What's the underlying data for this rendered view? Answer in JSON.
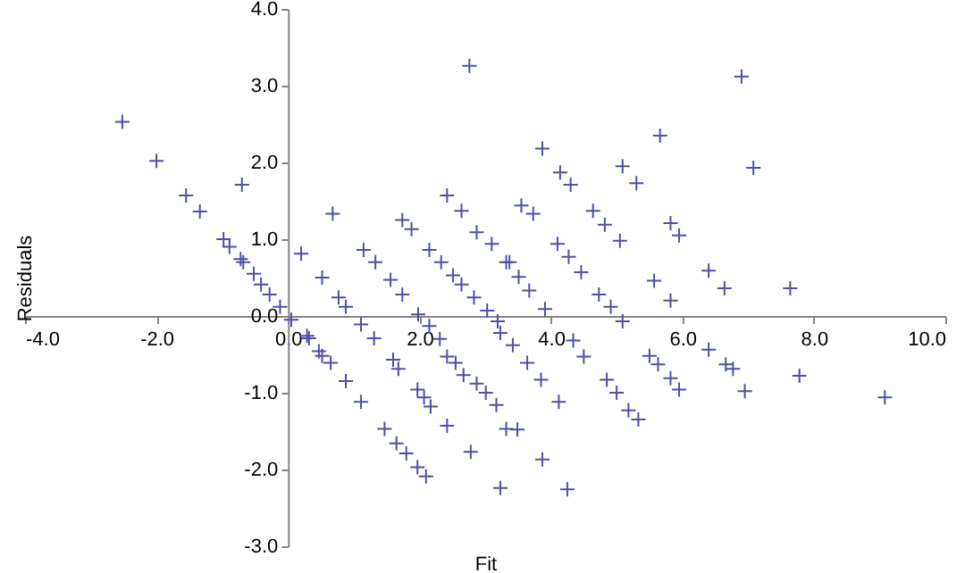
{
  "chart_data": {
    "type": "scatter",
    "xlabel": "Fit",
    "ylabel": "Residuals",
    "x": [
      -2.52,
      -2.0,
      -1.55,
      -1.34,
      -0.7,
      -0.98,
      -0.89,
      -0.72,
      -0.68,
      -0.52,
      -0.41,
      -0.28,
      -0.12,
      0.05,
      0.29,
      0.2,
      0.47,
      2.76,
      0.68,
      0.52,
      0.77,
      0.88,
      1.11,
      1.31,
      0.32,
      0.52,
      0.65,
      0.88,
      1.11,
      1.15,
      1.33,
      1.56,
      1.74,
      1.98,
      2.15,
      2.31,
      1.6,
      1.68,
      1.97,
      2.07,
      2.17,
      1.74,
      1.88,
      1.47,
      1.65,
      1.8,
      1.97,
      2.1,
      2.42,
      2.64,
      2.15,
      2.33,
      2.51,
      2.64,
      2.83,
      3.03,
      3.19,
      2.42,
      2.55,
      2.67,
      2.87,
      3.01,
      3.17,
      2.42,
      2.78,
      3.23,
      2.87,
      3.1,
      3.37,
      3.55,
      3.73,
      3.87,
      4.14,
      4.3,
      3.32,
      3.51,
      3.67,
      3.91,
      4.1,
      4.27,
      4.46,
      4.64,
      4.82,
      5.05,
      4.73,
      4.91,
      5.09,
      5.09,
      5.3,
      5.66,
      5.82,
      5.95,
      5.57,
      5.82,
      6.4,
      6.64,
      6.9,
      3.23,
      3.42,
      3.64,
      3.85,
      4.12,
      4.34,
      4.5,
      4.85,
      5.0,
      5.18,
      5.33,
      5.5,
      5.63,
      5.82,
      5.95,
      3.32,
      3.49,
      3.87,
      4.25,
      6.4,
      6.66,
      6.95,
      7.08,
      7.64,
      7.78,
      9.08,
      6.77
    ],
    "series": [
      {
        "color": "#4f4fa8",
        "values": [
          2.53,
          2.02,
          1.57,
          1.36,
          1.71,
          1.0,
          0.9,
          0.74,
          0.7,
          0.55,
          0.41,
          0.28,
          0.12,
          -0.05,
          -0.26,
          0.81,
          -0.46,
          3.26,
          1.33,
          0.5,
          0.24,
          0.12,
          -0.11,
          -0.29,
          -0.29,
          -0.52,
          -0.61,
          -0.85,
          -1.12,
          0.86,
          0.7,
          0.47,
          0.28,
          0.02,
          -0.13,
          -0.3,
          -0.57,
          -0.69,
          -0.96,
          -1.06,
          -1.18,
          1.25,
          1.13,
          -1.47,
          -1.66,
          -1.79,
          -1.97,
          -2.09,
          1.57,
          1.37,
          0.86,
          0.7,
          0.53,
          0.41,
          0.24,
          0.07,
          -0.07,
          -0.53,
          -0.61,
          -0.77,
          -0.88,
          -1.0,
          -1.16,
          -1.43,
          -1.77,
          -2.24,
          1.09,
          0.94,
          0.7,
          1.44,
          1.33,
          2.18,
          1.87,
          1.71,
          0.7,
          0.51,
          0.33,
          0.09,
          0.94,
          0.77,
          0.57,
          1.37,
          1.19,
          0.98,
          0.28,
          0.12,
          -0.07,
          1.95,
          1.73,
          2.35,
          1.21,
          1.05,
          0.46,
          0.2,
          0.59,
          0.36,
          3.12,
          -0.22,
          -0.38,
          -0.61,
          -0.83,
          -1.12,
          -0.32,
          -0.53,
          -0.83,
          -1.0,
          -1.23,
          -1.35,
          -0.52,
          -0.63,
          -0.81,
          -0.96,
          -1.47,
          -1.48,
          -1.87,
          -2.26,
          -0.44,
          -0.63,
          -0.98,
          1.93,
          0.36,
          -0.78,
          -1.06,
          -0.69
        ]
      }
    ],
    "xlim": [
      -4,
      10
    ],
    "xticks": [
      {
        "value": -4,
        "label": "-4.0"
      },
      {
        "value": -2,
        "label": "-2.0"
      },
      {
        "value": 0,
        "label": "0.0"
      },
      {
        "value": 2,
        "label": "2.0"
      },
      {
        "value": 4,
        "label": "4.0"
      },
      {
        "value": 6,
        "label": "6.0"
      },
      {
        "value": 8,
        "label": "8.0"
      },
      {
        "value": 10,
        "label": "10.0"
      }
    ],
    "ylim": [
      -3,
      4
    ],
    "yticks": [
      {
        "value": -3,
        "label": "-3.0"
      },
      {
        "value": -2,
        "label": "-2.0"
      },
      {
        "value": -1,
        "label": "-1.0"
      },
      {
        "value": 0,
        "label": "0.0"
      },
      {
        "value": 1,
        "label": "1.0"
      },
      {
        "value": 2,
        "label": "2.0"
      },
      {
        "value": 3,
        "label": "3.0"
      },
      {
        "value": 4,
        "label": "4.0"
      }
    ],
    "marker": "cross",
    "grid": false
  }
}
